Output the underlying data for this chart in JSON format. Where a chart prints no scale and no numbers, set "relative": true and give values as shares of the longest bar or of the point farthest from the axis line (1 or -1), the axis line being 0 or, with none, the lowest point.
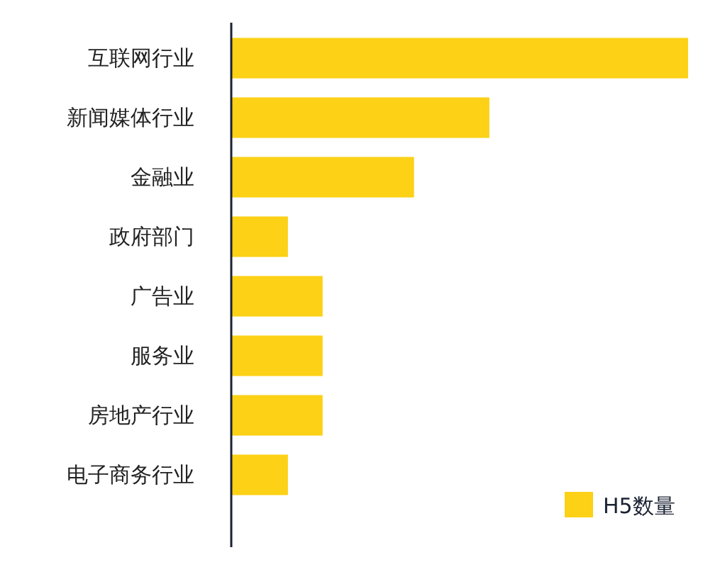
{
  "chart_data": {
    "type": "bar",
    "orientation": "horizontal",
    "relative": true,
    "categories": [
      "互联网行业",
      "新闻媒体行业",
      "金融业",
      "政府部门",
      "广告业",
      "服务业",
      "房地产行业",
      "电子商务行业"
    ],
    "series": [
      {
        "name": "H5数量",
        "color": "#fcd116",
        "values": [
          1,
          0.565,
          0.4,
          0.124,
          0.2,
          0.2,
          0.2,
          0.124
        ]
      }
    ],
    "legend": "bottom right"
  }
}
